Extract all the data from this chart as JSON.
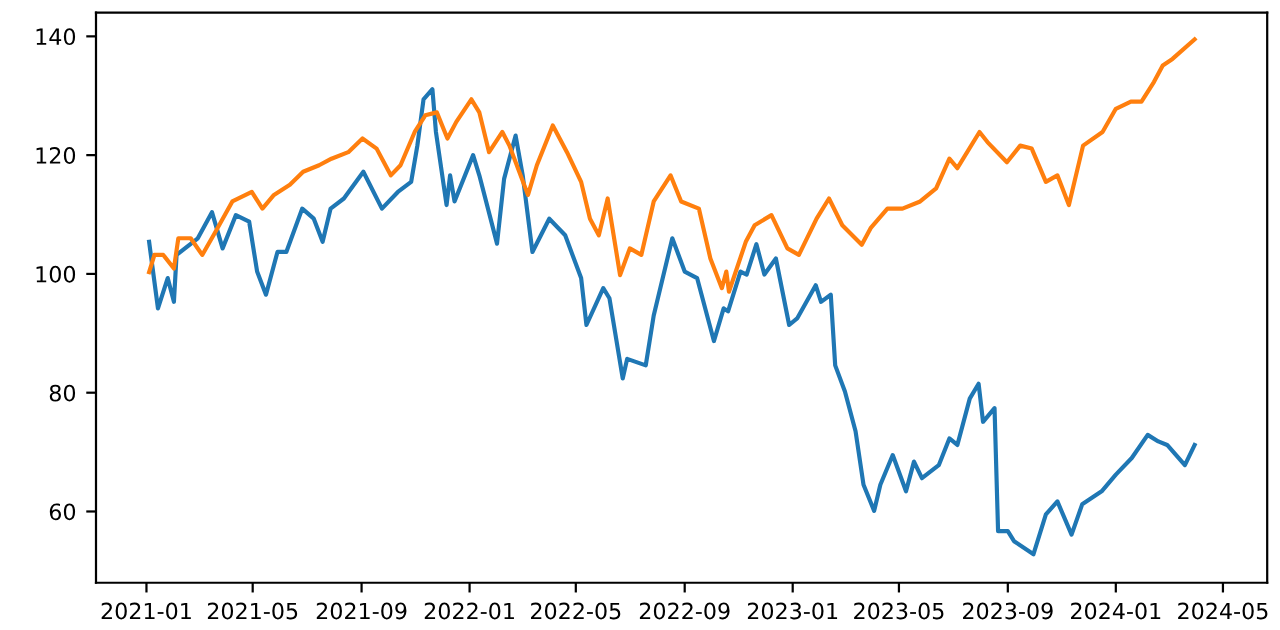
{
  "chart_data": {
    "type": "line",
    "xlim": [
      "2020-11-05",
      "2024-06-20"
    ],
    "ylim": [
      48,
      144
    ],
    "xticks": [
      {
        "value": "2021-01-01",
        "label": "2021-01"
      },
      {
        "value": "2021-05-01",
        "label": "2021-05"
      },
      {
        "value": "2021-09-01",
        "label": "2021-09"
      },
      {
        "value": "2022-01-01",
        "label": "2022-01"
      },
      {
        "value": "2022-05-01",
        "label": "2022-05"
      },
      {
        "value": "2022-09-01",
        "label": "2022-09"
      },
      {
        "value": "2023-01-01",
        "label": "2023-01"
      },
      {
        "value": "2023-05-01",
        "label": "2023-05"
      },
      {
        "value": "2023-09-01",
        "label": "2023-09"
      },
      {
        "value": "2024-01-01",
        "label": "2024-01"
      },
      {
        "value": "2024-05-01",
        "label": "2024-05"
      }
    ],
    "yticks": [
      60,
      80,
      100,
      120,
      140
    ],
    "grid": false,
    "series": [
      {
        "color": "#1f77b4",
        "x": [
          "2021-01-04",
          "2021-01-14",
          "2021-01-25",
          "2021-02-01",
          "2021-02-04",
          "2021-02-28",
          "2021-03-16",
          "2021-03-28",
          "2021-04-12",
          "2021-04-27",
          "2021-05-06",
          "2021-05-16",
          "2021-05-29",
          "2021-06-08",
          "2021-06-26",
          "2021-07-09",
          "2021-07-19",
          "2021-07-28",
          "2021-08-12",
          "2021-09-03",
          "2021-09-24",
          "2021-10-12",
          "2021-10-27",
          "2021-11-03",
          "2021-11-10",
          "2021-11-20",
          "2021-11-24",
          "2021-12-06",
          "2021-12-10",
          "2021-12-15",
          "2022-01-05",
          "2022-01-12",
          "2022-02-01",
          "2022-02-09",
          "2022-02-22",
          "2022-03-02",
          "2022-03-13",
          "2022-04-01",
          "2022-04-19",
          "2022-05-07",
          "2022-05-13",
          "2022-06-01",
          "2022-06-08",
          "2022-06-23",
          "2022-06-28",
          "2022-07-19",
          "2022-07-28",
          "2022-08-18",
          "2022-09-01",
          "2022-09-15",
          "2022-10-04",
          "2022-10-15",
          "2022-10-20",
          "2022-11-03",
          "2022-11-10",
          "2022-11-21",
          "2022-11-30",
          "2022-12-13",
          "2022-12-28",
          "2023-01-06",
          "2023-01-27",
          "2023-02-02",
          "2023-02-13",
          "2023-02-18",
          "2023-03-01",
          "2023-03-13",
          "2023-03-22",
          "2023-04-03",
          "2023-04-10",
          "2023-04-24",
          "2023-05-09",
          "2023-05-18",
          "2023-05-27",
          "2023-06-15",
          "2023-06-27",
          "2023-07-06",
          "2023-07-20",
          "2023-07-30",
          "2023-08-04",
          "2023-08-17",
          "2023-08-21",
          "2023-09-01",
          "2023-09-08",
          "2023-09-30",
          "2023-10-14",
          "2023-10-27",
          "2023-11-12",
          "2023-11-24",
          "2023-12-16",
          "2024-01-01",
          "2024-01-19",
          "2024-02-06",
          "2024-02-18",
          "2024-02-28",
          "2024-03-19",
          "2024-03-30"
        ],
        "values": [
          105.4,
          94.2,
          99.3,
          95.3,
          103.2,
          106,
          110.4,
          104.3,
          109.9,
          108.8,
          100.4,
          96.5,
          103.7,
          103.7,
          111,
          109.3,
          105.4,
          111,
          112.7,
          117.2,
          111,
          113.8,
          115.5,
          121.6,
          129.4,
          131.1,
          123.9,
          111.6,
          116.6,
          112.2,
          120,
          116.6,
          105.1,
          116,
          123.3,
          116.6,
          103.7,
          109.3,
          106.5,
          99.3,
          91.4,
          97.6,
          95.9,
          82.4,
          85.7,
          84.6,
          93,
          106,
          100.4,
          99.3,
          88.7,
          94.2,
          93.7,
          100.4,
          99.9,
          105,
          99.9,
          102.6,
          91.4,
          92.5,
          98.1,
          95.3,
          96.5,
          84.6,
          80.2,
          73.5,
          64.5,
          60.1,
          64.5,
          69.5,
          63.4,
          68.4,
          65.6,
          67.8,
          72.3,
          71.2,
          79,
          81.5,
          75.1,
          77.4,
          56.7,
          56.7,
          55,
          52.8,
          59.5,
          61.7,
          56.1,
          61.2,
          63.4,
          66.2,
          69,
          72.9,
          71.8,
          71.2,
          67.8,
          71.2
        ]
      },
      {
        "color": "#ff7f0e",
        "x": [
          "2021-01-04",
          "2021-01-10",
          "2021-01-20",
          "2021-02-01",
          "2021-02-06",
          "2021-02-20",
          "2021-03-05",
          "2021-03-20",
          "2021-04-08",
          "2021-04-30",
          "2021-05-12",
          "2021-05-25",
          "2021-06-12",
          "2021-06-27",
          "2021-07-15",
          "2021-07-29",
          "2021-08-17",
          "2021-09-02",
          "2021-09-18",
          "2021-10-04",
          "2021-10-15",
          "2021-10-31",
          "2021-11-12",
          "2021-11-25",
          "2021-12-07",
          "2021-12-17",
          "2022-01-03",
          "2022-01-12",
          "2022-01-23",
          "2022-02-07",
          "2022-02-15",
          "2022-03-08",
          "2022-03-18",
          "2022-04-05",
          "2022-04-21",
          "2022-05-07",
          "2022-05-17",
          "2022-05-27",
          "2022-06-06",
          "2022-06-20",
          "2022-07-01",
          "2022-07-14",
          "2022-07-28",
          "2022-08-16",
          "2022-08-28",
          "2022-09-17",
          "2022-09-30",
          "2022-10-13",
          "2022-10-18",
          "2022-10-21",
          "2022-11-09",
          "2022-11-19",
          "2022-12-08",
          "2022-12-26",
          "2023-01-08",
          "2023-01-28",
          "2023-02-11",
          "2023-02-26",
          "2023-03-20",
          "2023-03-30",
          "2023-04-18",
          "2023-05-05",
          "2023-05-25",
          "2023-06-12",
          "2023-06-27",
          "2023-07-06",
          "2023-07-31",
          "2023-08-09",
          "2023-08-31",
          "2023-09-15",
          "2023-09-28",
          "2023-10-14",
          "2023-10-27",
          "2023-11-09",
          "2023-11-25",
          "2023-12-17",
          "2024-01-01",
          "2024-01-18",
          "2024-01-30",
          "2024-02-13",
          "2024-02-23",
          "2024-03-05",
          "2024-03-30"
        ],
        "values": [
          100.3,
          103.2,
          103.2,
          100.9,
          106,
          106,
          103.2,
          107.1,
          112.2,
          113.8,
          111,
          113.3,
          115,
          117.2,
          118.3,
          119.4,
          120.5,
          122.8,
          121.1,
          116.6,
          118.3,
          123.9,
          126.7,
          127.2,
          122.8,
          125.6,
          129.4,
          127.2,
          120.5,
          123.9,
          121.6,
          113.3,
          118.3,
          125,
          120.5,
          115.5,
          109.3,
          106.5,
          112.7,
          99.8,
          104.3,
          103.2,
          112.2,
          116.6,
          112.2,
          111,
          102.6,
          97.6,
          100.4,
          97,
          105.4,
          108.2,
          109.9,
          104.3,
          103.2,
          109.3,
          112.7,
          108.2,
          104.9,
          107.7,
          111,
          111,
          112.2,
          114.4,
          119.4,
          117.8,
          123.9,
          122.2,
          118.8,
          121.6,
          121.1,
          115.5,
          116.6,
          111.6,
          121.6,
          123.9,
          127.8,
          129,
          129,
          132.3,
          135.1,
          136.2,
          139.5
        ]
      }
    ]
  }
}
